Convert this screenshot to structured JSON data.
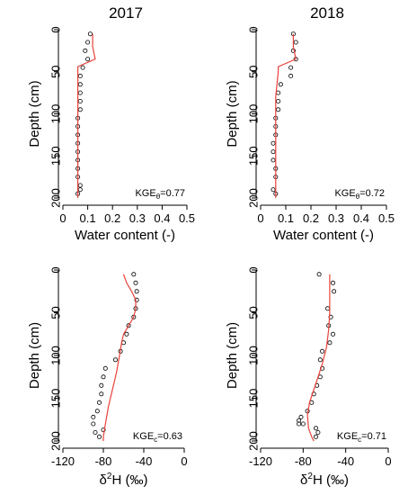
{
  "colors": {
    "model_line": "#e8413a",
    "observed_marker": "#000000",
    "axis": "#000000"
  },
  "panel_titles": [
    "2017",
    "2018"
  ],
  "chart_data": [
    {
      "type": "scatter",
      "title": "2017",
      "xlabel": "Water content (-)",
      "ylabel": "Depth (cm)",
      "xlim": [
        0,
        0.5
      ],
      "ylim": [
        200,
        0
      ],
      "xticks": [
        "0",
        "0.1",
        "0.2",
        "0.3",
        "0.4",
        "0.5"
      ],
      "yticks": [
        "0",
        "50",
        "100",
        "150",
        "200"
      ],
      "annotation": {
        "text": "KGE",
        "sub": "θ",
        "value": "=0.77"
      },
      "series": [
        {
          "kind": "points",
          "x": [
            0.11,
            0.1,
            0.09,
            0.1,
            0.08,
            0.07,
            0.07,
            0.07,
            0.07,
            0.07,
            0.06,
            0.06,
            0.06,
            0.06,
            0.06,
            0.06,
            0.06,
            0.06,
            0.07,
            0.07,
            0.06
          ],
          "y": [
            5,
            15,
            25,
            35,
            45,
            55,
            65,
            75,
            85,
            95,
            105,
            115,
            125,
            135,
            145,
            155,
            165,
            175,
            185,
            190,
            195
          ]
        },
        {
          "kind": "line",
          "x": [
            0.12,
            0.12,
            0.13,
            0.06,
            0.06,
            0.06,
            0.06,
            0.06,
            0.06,
            0.06
          ],
          "y": [
            5,
            20,
            35,
            44,
            60,
            100,
            150,
            180,
            195,
            200
          ]
        }
      ]
    },
    {
      "type": "scatter",
      "title": "2018",
      "xlabel": "Water content (-)",
      "ylabel": "Depth (cm)",
      "xlim": [
        0,
        0.5
      ],
      "ylim": [
        200,
        0
      ],
      "xticks": [
        "0",
        "0.1",
        "0.2",
        "0.3",
        "0.4",
        "0.5"
      ],
      "yticks": [
        "0",
        "50",
        "100",
        "150",
        "200"
      ],
      "annotation": {
        "text": "KGE",
        "sub": "θ",
        "value": "=0.72"
      },
      "series": [
        {
          "kind": "points",
          "x": [
            0.13,
            0.14,
            0.13,
            0.14,
            0.12,
            0.12,
            0.08,
            0.07,
            0.07,
            0.07,
            0.06,
            0.06,
            0.06,
            0.05,
            0.05,
            0.05,
            0.06,
            0.06,
            0.05,
            0.06
          ],
          "y": [
            5,
            15,
            25,
            35,
            45,
            55,
            65,
            75,
            85,
            95,
            105,
            115,
            125,
            135,
            145,
            155,
            165,
            175,
            190,
            195
          ]
        },
        {
          "kind": "line",
          "x": [
            0.13,
            0.13,
            0.14,
            0.07,
            0.07,
            0.06,
            0.06,
            0.06,
            0.06,
            0.06,
            0.06
          ],
          "y": [
            5,
            20,
            35,
            44,
            50,
            80,
            110,
            150,
            180,
            195,
            200
          ]
        }
      ]
    },
    {
      "type": "scatter",
      "title": "",
      "xlabel": "δ²H (‰)",
      "xlabel_parts": {
        "delta": "δ",
        "sup": "2",
        "rest": "H (‰)"
      },
      "ylabel": "Depth (cm)",
      "xlim": [
        -120,
        0
      ],
      "ylim": [
        200,
        0
      ],
      "xticks": [
        "-120",
        "-80",
        "-40",
        "0"
      ],
      "yticks": [
        "0",
        "50",
        "100",
        "150",
        "200"
      ],
      "annotation": {
        "text": "KGE",
        "sub": "c",
        "value": "=0.63"
      },
      "series": [
        {
          "kind": "points",
          "x": [
            -50,
            -48,
            -47,
            -47,
            -48,
            -50,
            -55,
            -57,
            -60,
            -63,
            -68,
            -78,
            -80,
            -82,
            -82,
            -84,
            -86,
            -90,
            -90,
            -88,
            -80,
            -84
          ],
          "y": [
            5,
            15,
            25,
            35,
            45,
            55,
            65,
            75,
            85,
            95,
            105,
            115,
            125,
            135,
            145,
            155,
            165,
            172,
            180,
            190,
            187,
            195
          ]
        },
        {
          "kind": "line",
          "x": [
            -60,
            -57,
            -52,
            -48,
            -48,
            -50,
            -55,
            -60,
            -62,
            -64,
            -67,
            -71,
            -75,
            -78,
            -80,
            -80
          ],
          "y": [
            5,
            15,
            25,
            35,
            45,
            55,
            65,
            75,
            85,
            100,
            120,
            140,
            160,
            180,
            195,
            200
          ]
        }
      ]
    },
    {
      "type": "scatter",
      "title": "",
      "xlabel": "δ²H (‰)",
      "xlabel_parts": {
        "delta": "δ",
        "sup": "2",
        "rest": "H (‰)"
      },
      "ylabel": "Depth (cm)",
      "xlim": [
        -120,
        0
      ],
      "ylim": [
        200,
        0
      ],
      "xticks": [
        "-120",
        "-80",
        "-40",
        "0"
      ],
      "yticks": [
        "0",
        "50",
        "100",
        "150",
        "200"
      ],
      "annotation": {
        "text": "KGE",
        "sub": "c",
        "value": "=0.71"
      },
      "series": [
        {
          "kind": "points",
          "x": [
            -65,
            -52,
            -51,
            -57,
            -54,
            -56,
            -52,
            -55,
            -62,
            -64,
            -62,
            -64,
            -67,
            -70,
            -72,
            -76,
            -82,
            -84,
            -84,
            -80,
            -68,
            -66,
            -68
          ],
          "y": [
            5,
            15,
            25,
            45,
            55,
            65,
            75,
            85,
            95,
            105,
            115,
            125,
            135,
            145,
            155,
            165,
            172,
            176,
            180,
            180,
            185,
            190,
            195
          ]
        },
        {
          "kind": "line",
          "x": [
            -55,
            -55,
            -55,
            -56,
            -58,
            -62,
            -66,
            -70,
            -74,
            -76,
            -75,
            -72,
            -70
          ],
          "y": [
            5,
            25,
            50,
            70,
            90,
            110,
            125,
            140,
            155,
            170,
            185,
            195,
            200
          ]
        }
      ]
    }
  ]
}
